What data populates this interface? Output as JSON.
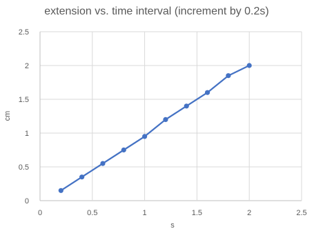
{
  "chart_data": {
    "type": "scatter",
    "title": "extension vs. time interval (increment by 0.2s)",
    "xlabel": "s",
    "ylabel": "cm",
    "xlim": [
      0,
      2.5
    ],
    "ylim": [
      0,
      2.5
    ],
    "x_ticks": [
      "0",
      "0.5",
      "1",
      "1.5",
      "2",
      "2.5"
    ],
    "y_ticks": [
      "0",
      "0.5",
      "1",
      "1.5",
      "2",
      "2.5"
    ],
    "grid": "vertical and horizontal",
    "legend": "none",
    "series": [
      {
        "color": "#4472c4",
        "x": [
          0.2,
          0.4,
          0.6,
          0.8,
          1.0,
          1.2,
          1.4,
          1.6,
          1.8,
          2.0
        ],
        "y": [
          0.15,
          0.35,
          0.55,
          0.75,
          0.95,
          1.2,
          1.4,
          1.6,
          1.85,
          2.0
        ]
      }
    ]
  }
}
